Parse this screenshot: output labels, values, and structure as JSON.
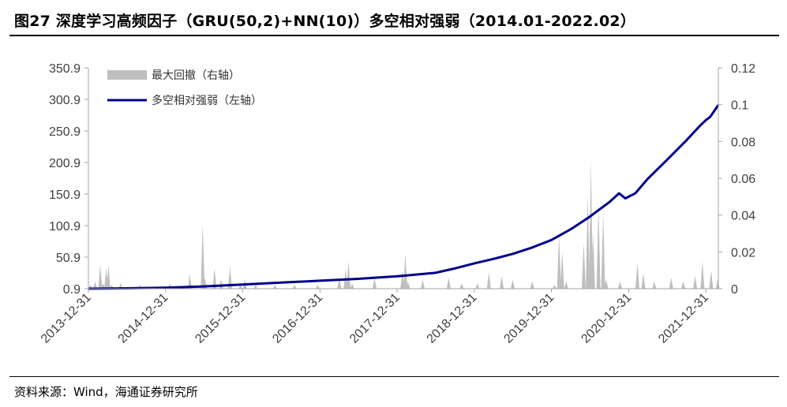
{
  "title": "图27 深度学习高频因子（GRU(50,2)+NN(10)）多空相对强弱（2014.01-2022.02）",
  "source": "资料来源：Wind，海通证券研究所",
  "colors": {
    "line": "#00008B",
    "drawdown": "#BFBFBF",
    "axis": "#A6A6A6",
    "text": "#404040"
  },
  "chart_data": {
    "type": "line",
    "title": "",
    "x_tick_labels": [
      "2013-12-31",
      "2014-12-31",
      "2015-12-31",
      "2016-12-31",
      "2017-12-31",
      "2018-12-31",
      "2019-12-31",
      "2020-12-31",
      "2021-12-31"
    ],
    "x_range": [
      "2013-12-31",
      "2022-02-28"
    ],
    "left_axis": {
      "ticks": [
        "0.9",
        "50.9",
        "100.9",
        "150.9",
        "200.9",
        "250.9",
        "300.9",
        "350.9"
      ],
      "range": [
        0.9,
        350.9
      ]
    },
    "right_axis": {
      "ticks": [
        "0",
        "0.02",
        "0.04",
        "0.06",
        "0.08",
        "0.1",
        "0.12"
      ],
      "range": [
        0,
        0.12
      ]
    },
    "legend": [
      "最大回撤（右轴）",
      "多空相对强弱（左轴）"
    ],
    "legend_position": "top-left",
    "series": [
      {
        "name": "多空相对强弱（左轴）",
        "axis": "left",
        "kind": "line",
        "points": [
          [
            "2013-12-31",
            0.9
          ],
          [
            "2014-06-30",
            1.5
          ],
          [
            "2014-12-31",
            2.5
          ],
          [
            "2015-06-30",
            4.5
          ],
          [
            "2015-12-31",
            7.5
          ],
          [
            "2016-06-30",
            10.5
          ],
          [
            "2016-12-31",
            13.5
          ],
          [
            "2017-06-30",
            16.5
          ],
          [
            "2017-12-31",
            20.5
          ],
          [
            "2018-06-30",
            26
          ],
          [
            "2018-09-30",
            33
          ],
          [
            "2018-12-31",
            41
          ],
          [
            "2019-03-31",
            48
          ],
          [
            "2019-06-30",
            56
          ],
          [
            "2019-09-30",
            66
          ],
          [
            "2019-12-31",
            78
          ],
          [
            "2020-03-31",
            95
          ],
          [
            "2020-06-30",
            115
          ],
          [
            "2020-09-30",
            138
          ],
          [
            "2020-11-15",
            152
          ],
          [
            "2020-12-15",
            144
          ],
          [
            "2021-01-31",
            152
          ],
          [
            "2021-03-31",
            175
          ],
          [
            "2021-06-30",
            205
          ],
          [
            "2021-09-30",
            236
          ],
          [
            "2021-11-30",
            258
          ],
          [
            "2021-12-31",
            268
          ],
          [
            "2022-01-20",
            273
          ],
          [
            "2022-02-28",
            292
          ]
        ]
      },
      {
        "name": "最大回撤（右轴）",
        "axis": "right",
        "kind": "area",
        "points": [
          [
            "2014-01-10",
            0.002
          ],
          [
            "2014-02-01",
            0.004
          ],
          [
            "2014-02-25",
            0.013
          ],
          [
            "2014-03-10",
            0.003
          ],
          [
            "2014-03-25",
            0.011
          ],
          [
            "2014-04-05",
            0.013
          ],
          [
            "2014-04-20",
            0.002
          ],
          [
            "2014-06-01",
            0.003
          ],
          [
            "2014-09-01",
            0.002
          ],
          [
            "2015-01-20",
            0.003
          ],
          [
            "2015-04-25",
            0.008
          ],
          [
            "2015-06-25",
            0.035
          ],
          [
            "2015-07-05",
            0.006
          ],
          [
            "2015-08-20",
            0.011
          ],
          [
            "2015-09-20",
            0.005
          ],
          [
            "2015-11-01",
            0.012
          ],
          [
            "2015-12-20",
            0.002
          ],
          [
            "2016-01-10",
            0.005
          ],
          [
            "2016-03-01",
            0.002
          ],
          [
            "2016-06-01",
            0.002
          ],
          [
            "2016-09-01",
            0.002
          ],
          [
            "2016-12-20",
            0.002
          ],
          [
            "2017-04-01",
            0.006
          ],
          [
            "2017-05-01",
            0.011
          ],
          [
            "2017-05-15",
            0.015
          ],
          [
            "2017-06-01",
            0.003
          ],
          [
            "2017-09-15",
            0.006
          ],
          [
            "2018-01-25",
            0.01
          ],
          [
            "2018-02-08",
            0.019
          ],
          [
            "2018-02-20",
            0.004
          ],
          [
            "2018-05-01",
            0.005
          ],
          [
            "2018-09-01",
            0.006
          ],
          [
            "2018-11-01",
            0.003
          ],
          [
            "2019-01-15",
            0.003
          ],
          [
            "2019-03-10",
            0.009
          ],
          [
            "2019-05-10",
            0.007
          ],
          [
            "2019-07-01",
            0.005
          ],
          [
            "2019-10-01",
            0.004
          ],
          [
            "2020-01-15",
            0.002
          ],
          [
            "2020-02-05",
            0.03
          ],
          [
            "2020-02-20",
            0.02
          ],
          [
            "2020-03-10",
            0.004
          ],
          [
            "2020-06-01",
            0.025
          ],
          [
            "2020-06-20",
            0.052
          ],
          [
            "2020-07-05",
            0.07
          ],
          [
            "2020-07-15",
            0.03
          ],
          [
            "2020-08-10",
            0.045
          ],
          [
            "2020-09-01",
            0.042
          ],
          [
            "2020-09-15",
            0.005
          ],
          [
            "2020-11-20",
            0.004
          ],
          [
            "2021-02-10",
            0.014
          ],
          [
            "2021-03-10",
            0.008
          ],
          [
            "2021-05-01",
            0.004
          ],
          [
            "2021-07-20",
            0.006
          ],
          [
            "2021-09-15",
            0.004
          ],
          [
            "2021-11-10",
            0.007
          ],
          [
            "2021-12-15",
            0.015
          ],
          [
            "2022-01-25",
            0.01
          ],
          [
            "2022-02-25",
            0.005
          ]
        ]
      }
    ]
  }
}
